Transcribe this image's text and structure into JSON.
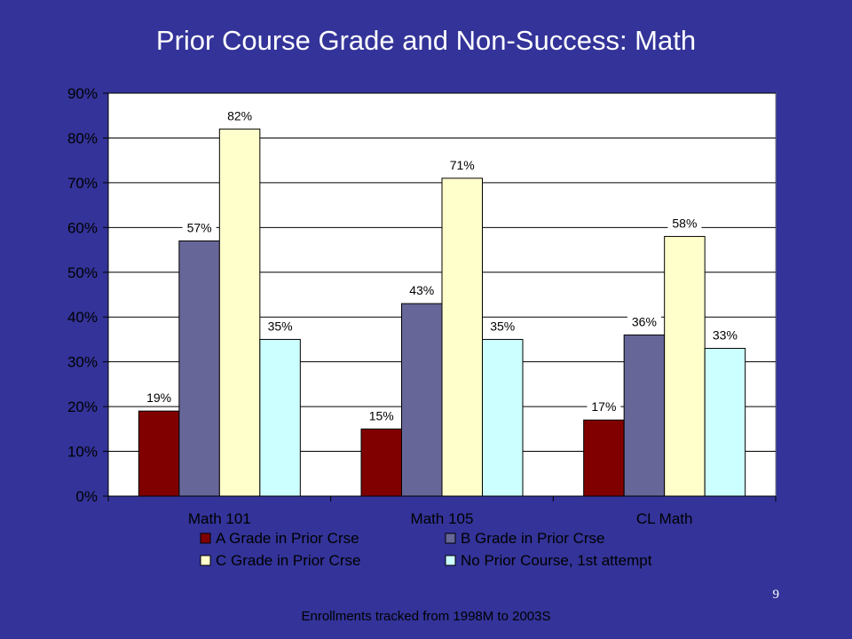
{
  "slide": {
    "title": "Prior Course Grade and Non-Success: Math",
    "page_number": "9",
    "footnote": "Enrollments tracked from 1998M to 2003S"
  },
  "chart_data": {
    "type": "bar",
    "categories": [
      "Math 101",
      "Math 105",
      "CL Math"
    ],
    "series": [
      {
        "name": "A Grade in Prior Crse",
        "values": [
          19,
          15,
          17
        ],
        "labels": [
          "19%",
          "15%",
          "17%"
        ],
        "color": "#800000"
      },
      {
        "name": "B Grade in Prior Crse",
        "values": [
          57,
          43,
          36
        ],
        "labels": [
          "57%",
          "43%",
          "36%"
        ],
        "color": "#666699"
      },
      {
        "name": "C Grade in Prior Crse",
        "values": [
          82,
          71,
          58
        ],
        "labels": [
          "82%",
          "71%",
          "58%"
        ],
        "color": "#FFFFCC"
      },
      {
        "name": "No Prior Course, 1st attempt",
        "values": [
          35,
          35,
          33
        ],
        "labels": [
          "35%",
          "35%",
          "33%"
        ],
        "color": "#CCFFFF"
      }
    ],
    "ylim": [
      0,
      90
    ],
    "yticks": [
      0,
      10,
      20,
      30,
      40,
      50,
      60,
      70,
      80,
      90
    ],
    "ytick_labels": [
      "0%",
      "10%",
      "20%",
      "30%",
      "40%",
      "50%",
      "60%",
      "70%",
      "80%",
      "90%"
    ],
    "grid": true,
    "legend_position": "bottom",
    "plot_background": "#FFFFFF"
  }
}
